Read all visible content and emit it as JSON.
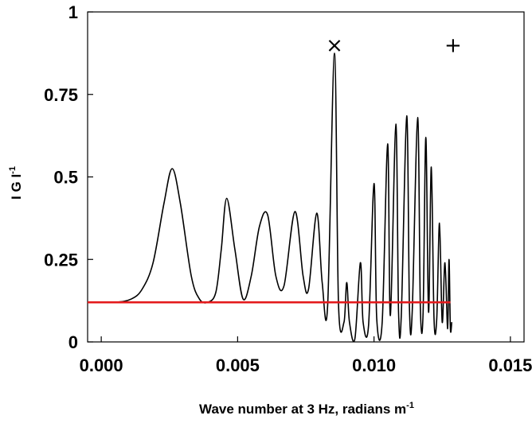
{
  "chart_data": {
    "type": "line",
    "title": "",
    "xlabel": {
      "main": "Wave number at 3 Hz, radians m",
      "sup": "-1"
    },
    "ylabel": {
      "main": "I G I",
      "sup": "-1"
    },
    "xlim": [
      -0.0005,
      0.0155
    ],
    "ylim": [
      0,
      1
    ],
    "x_ticks": [
      0.0,
      0.005,
      0.01,
      0.015
    ],
    "x_tick_labels": [
      "0.000",
      "0.005",
      "0.010",
      "0.015"
    ],
    "y_ticks": [
      0,
      0.25,
      0.5,
      0.75,
      1
    ],
    "y_tick_labels": [
      "0",
      "0.25",
      "0.5",
      "0.75",
      "1"
    ],
    "grid": false,
    "series": [
      {
        "color": "#000000",
        "x": [
          -0.0005,
          0.0005,
          0.0011,
          0.0015,
          0.0019,
          0.0023,
          0.0026,
          0.0029,
          0.0033,
          0.0036,
          0.0039,
          0.0042,
          0.0044,
          0.0046,
          0.0049,
          0.0052,
          0.0055,
          0.0058,
          0.0061,
          0.0064,
          0.0067,
          0.0071,
          0.0074,
          0.0076,
          0.0079,
          0.0081,
          0.0083,
          0.00855,
          0.0087,
          0.0089,
          0.009,
          0.0091,
          0.0093,
          0.0095,
          0.0096,
          0.0098,
          0.01,
          0.0101,
          0.0103,
          0.0105,
          0.0106,
          0.0108,
          0.0109,
          0.011,
          0.0112,
          0.0113,
          0.0114,
          0.0116,
          0.0117,
          0.0118,
          0.0119,
          0.012,
          0.0121,
          0.0122,
          0.0123,
          0.0124,
          0.0125,
          0.0126,
          0.0127,
          0.01275,
          0.0128,
          0.01285
        ],
        "y": [
          0.12,
          0.12,
          0.13,
          0.16,
          0.24,
          0.42,
          0.525,
          0.42,
          0.2,
          0.13,
          0.12,
          0.15,
          0.28,
          0.435,
          0.28,
          0.13,
          0.2,
          0.35,
          0.385,
          0.2,
          0.17,
          0.395,
          0.2,
          0.16,
          0.39,
          0.18,
          0.11,
          0.875,
          0.11,
          0.06,
          0.18,
          0.06,
          0.01,
          0.24,
          0.06,
          0.05,
          0.48,
          0.07,
          0.06,
          0.6,
          0.08,
          0.66,
          0.09,
          0.08,
          0.685,
          0.1,
          0.09,
          0.68,
          0.1,
          0.09,
          0.62,
          0.09,
          0.53,
          0.07,
          0.07,
          0.36,
          0.06,
          0.24,
          0.04,
          0.25,
          0.04,
          0.06
        ]
      },
      {
        "color": "#e41a1c",
        "x": [
          -0.0005,
          0.0128
        ],
        "y": [
          0.12,
          0.12
        ]
      }
    ],
    "annotations": [
      {
        "text": "×",
        "x": 0.00855,
        "y": 0.9
      },
      {
        "text": "+",
        "x": 0.0129,
        "y": 0.9
      }
    ]
  }
}
